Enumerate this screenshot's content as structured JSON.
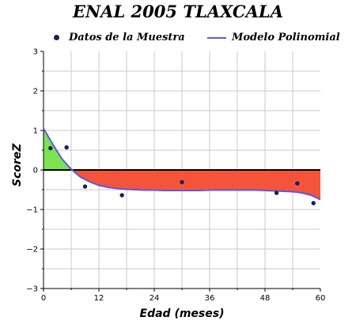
{
  "chart_data": {
    "type": "scatter",
    "title": "ENAL 2005 TLAXCALA",
    "xlabel": "Edad (meses)",
    "ylabel": "ScoreZ",
    "xlim": [
      0,
      60
    ],
    "ylim": [
      -3,
      3
    ],
    "x_ticks": [
      0,
      12,
      24,
      36,
      48,
      60
    ],
    "y_ticks": [
      -3,
      -2,
      -1,
      0,
      1,
      2,
      3
    ],
    "grid": true,
    "legend_position": "top",
    "series": [
      {
        "name": "Datos de la Muestra",
        "kind": "points",
        "color": "#1c1c5a",
        "x": [
          1.5,
          5,
          9,
          17,
          30,
          50.5,
          55,
          58.5
        ],
        "y": [
          0.55,
          0.57,
          -0.42,
          -0.64,
          -0.31,
          -0.58,
          -0.34,
          -0.84
        ]
      },
      {
        "name": "Modelo Polinomial",
        "kind": "line",
        "color": "#5a5ae6",
        "x": [
          0,
          2,
          4,
          6,
          8,
          10,
          12,
          14,
          16,
          18,
          20,
          22,
          24,
          26,
          28,
          30,
          32,
          34,
          36,
          38,
          40,
          42,
          44,
          46,
          48,
          50,
          52,
          54,
          56,
          58,
          60
        ],
        "y": [
          1.05,
          0.65,
          0.28,
          0.02,
          -0.18,
          -0.3,
          -0.39,
          -0.44,
          -0.47,
          -0.49,
          -0.5,
          -0.51,
          -0.51,
          -0.52,
          -0.52,
          -0.52,
          -0.52,
          -0.52,
          -0.51,
          -0.51,
          -0.51,
          -0.51,
          -0.51,
          -0.51,
          -0.52,
          -0.53,
          -0.54,
          -0.55,
          -0.58,
          -0.64,
          -0.75
        ]
      }
    ],
    "fill_colors": {
      "above_zero": "#7de34f",
      "below_zero": "#f4553a"
    }
  }
}
